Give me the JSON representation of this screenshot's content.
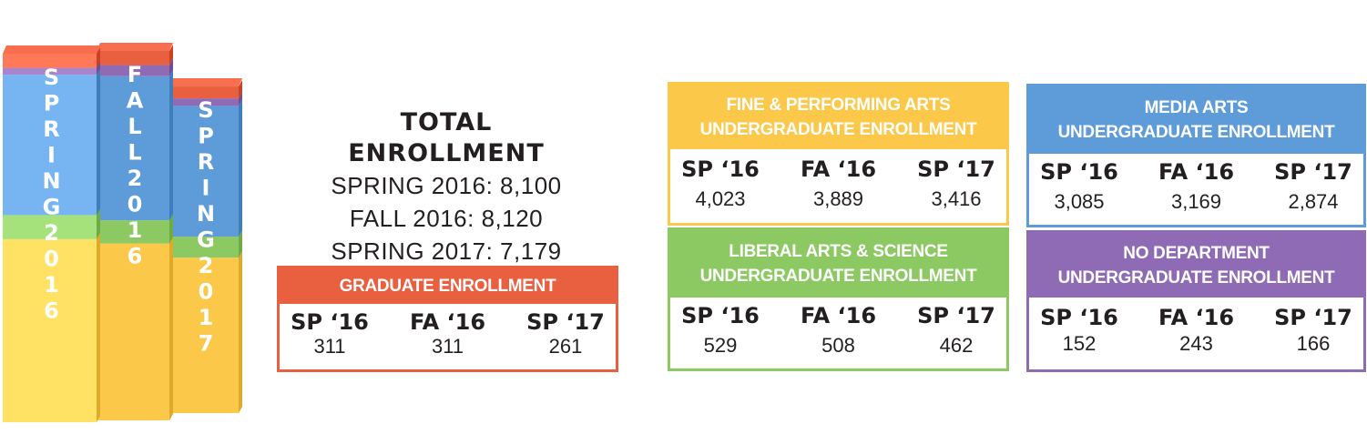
{
  "chart_data": {
    "type": "bar",
    "categories": [
      "SPRING 2016",
      "FALL 2016",
      "SPRING 2017"
    ],
    "series": [
      {
        "name": "GRADUATE ENROLLMENT",
        "values": [
          311,
          311,
          261
        ]
      },
      {
        "name": "NO DEPARTMENT",
        "values": [
          152,
          243,
          166
        ]
      },
      {
        "name": "MEDIA ARTS",
        "values": [
          3085,
          3169,
          2874
        ]
      },
      {
        "name": "LIBERAL ARTS & SCIENCE",
        "values": [
          529,
          508,
          462
        ]
      },
      {
        "name": "FINE & PERFORMING ARTS",
        "values": [
          4023,
          3889,
          3416
        ]
      }
    ],
    "colors": {
      "graduate": "#e8603f",
      "no_department": "#8f6bb5",
      "media_arts": "#5d9bd9",
      "liberal_arts": "#8dc963",
      "fine_arts": "#fcc84a"
    }
  },
  "total": {
    "title": "TOTAL ENROLLMENT",
    "lines": [
      "SPRING 2016: 8,100",
      "FALL 2016: 8,120",
      "SPRING 2017: 7,179"
    ]
  },
  "col_labels": [
    "SP ‘16",
    "FA ‘16",
    "SP ‘17"
  ],
  "boxes": {
    "graduate": {
      "title": [
        "GRADUATE ENROLLMENT"
      ],
      "values": [
        "311",
        "311",
        "261"
      ],
      "color": "#e8603f"
    },
    "fine_arts": {
      "title": [
        "FINE & PERFORMING ARTS",
        "UNDERGRADUATE ENROLLMENT"
      ],
      "values": [
        "4,023",
        "3,889",
        "3,416"
      ],
      "color": "#fcc84a"
    },
    "liberal_arts": {
      "title": [
        "LIBERAL ARTS & SCIENCE",
        "UNDERGRADUATE ENROLLMENT"
      ],
      "values": [
        "529",
        "508",
        "462"
      ],
      "color": "#8dc963"
    },
    "media_arts": {
      "title": [
        "MEDIA ARTS",
        "UNDERGRADUATE ENROLLMENT"
      ],
      "values": [
        "3,085",
        "3,169",
        "2,874"
      ],
      "color": "#5d9bd9"
    },
    "no_department": {
      "title": [
        "NO DEPARTMENT",
        "UNDERGRADUATE ENROLLMENT"
      ],
      "values": [
        "152",
        "243",
        "166"
      ],
      "color": "#8f6bb5"
    }
  }
}
